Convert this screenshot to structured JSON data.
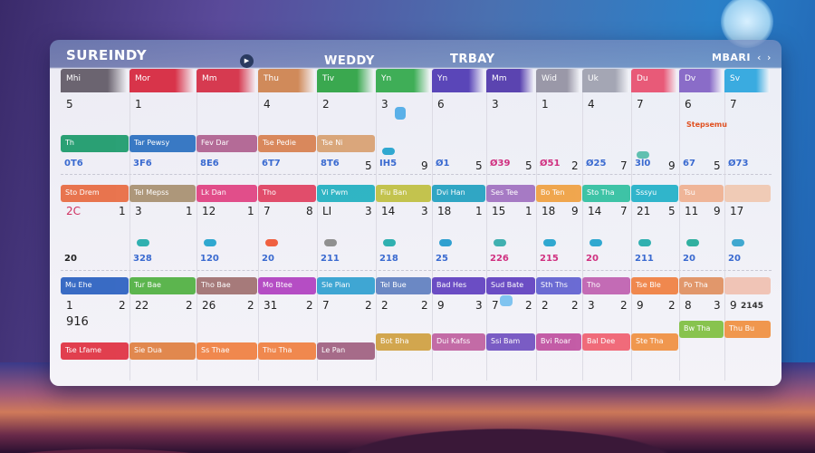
{
  "header": {
    "title": "SUREINDY",
    "sub1": "WEDDY",
    "sub2": "TRBAY",
    "month": "MBARI",
    "prev": "‹",
    "next": "›",
    "play_icon": "▶"
  },
  "colors": {
    "panel": "#f4f3f8",
    "accent": "#3a6ad0"
  },
  "columns": [
    {
      "label": "Mhi",
      "color": "#6b6470"
    },
    {
      "label": "Mor",
      "color": "#d8344a"
    },
    {
      "label": "Mm",
      "color": "#d63a50"
    },
    {
      "label": "Thu",
      "color": "#d08a5a"
    },
    {
      "label": "Tiv",
      "color": "#3aa84f"
    },
    {
      "label": "Yn",
      "color": "#3fae57"
    },
    {
      "label": "Yn",
      "color": "#5a46b8"
    },
    {
      "label": "Mm",
      "color": "#5b44b0"
    },
    {
      "label": "Wid",
      "color": "#9a98a8"
    },
    {
      "label": "Uk",
      "color": "#a4a6b4"
    },
    {
      "label": "Du",
      "color": "#e85a78"
    },
    {
      "label": "Dv",
      "color": "#8a6cc8"
    },
    {
      "label": "Sv",
      "color": "#3aabe0"
    }
  ],
  "row1": {
    "dates": [
      "5",
      "1",
      "",
      "4",
      "2",
      "3",
      "6",
      "3",
      "1",
      "4",
      "7",
      "6",
      "7"
    ],
    "sides": [
      "",
      "",
      "",
      "",
      "",
      "5",
      "9",
      "5",
      "5",
      "2",
      "7",
      "9",
      "5"
    ],
    "values": [
      "0T6",
      "3F6",
      "8E6",
      "6T7",
      "8T6",
      "IH5",
      "Ø1",
      "Ø39",
      "Ø51",
      "Ø25",
      "3l0",
      "67",
      "Ø73"
    ],
    "events": [
      {
        "label": "Th",
        "color": "#1a9a6a"
      },
      {
        "label": "Tar Pewsy",
        "color": "#2a70c0"
      },
      {
        "label": "Fev Dar",
        "color": "#b06090"
      },
      {
        "label": "Tse Pedie",
        "color": "#d88050"
      },
      {
        "label": "Tse Ni",
        "color": "#d8a070"
      }
    ],
    "tag": "Stepsemu"
  },
  "band2": [
    {
      "label": "Sto Drem",
      "color": "#e86a40"
    },
    {
      "label": "Tel Mepss",
      "color": "#a89070"
    },
    {
      "label": "Lk Dan",
      "color": "#e04080"
    },
    {
      "label": "Tho",
      "color": "#e04060"
    },
    {
      "label": "Vi Pwm",
      "color": "#20b0c0"
    },
    {
      "label": "Fiu Ban",
      "color": "#c0c040"
    },
    {
      "label": "Dvi Han",
      "color": "#20a0c0"
    },
    {
      "label": "Ses Tee",
      "color": "#a070c0"
    },
    {
      "label": "Bo Ten",
      "color": "#f0a040"
    },
    {
      "label": "Sto Tha",
      "color": "#30c0a0"
    },
    {
      "label": "Sssyu",
      "color": "#20b0c8"
    },
    {
      "label": "Tsu",
      "color": "#f0b090"
    },
    {
      "label": "",
      "color": "#f0c8b0"
    }
  ],
  "row2": {
    "dates": [
      "2C",
      "3",
      "12",
      "7",
      "LI",
      "14",
      "18",
      "15",
      "18",
      "14",
      "21",
      "11",
      "17"
    ],
    "sides": [
      "",
      "1",
      "1",
      "1",
      "8",
      "3",
      "3",
      "1",
      "1",
      "9",
      "7",
      "5",
      "9"
    ],
    "values": [
      "20",
      "328",
      "120",
      "20",
      "211",
      "218",
      "25",
      "226",
      "215",
      "20",
      "211",
      "20",
      "20"
    ],
    "pills": [
      "",
      "#30b0b0",
      "#30a8d0",
      "#f06040",
      "#909090",
      "#30b0b0",
      "#30a0d0",
      "#40b0b0",
      "#30a8d0",
      "#30a8d0",
      "#30b0b0",
      "#30b0a0",
      "#40a8d0"
    ]
  },
  "band3": [
    {
      "label": "Mu Ehe",
      "color": "#2a60c0"
    },
    {
      "label": "Tur Bae",
      "color": "#50b040"
    },
    {
      "label": "Tho Bae",
      "color": "#a07070"
    },
    {
      "label": "Mo Btee",
      "color": "#b040c0"
    },
    {
      "label": "Sle Pian",
      "color": "#30a0d0"
    },
    {
      "label": "Tel Bue",
      "color": "#6080c0"
    },
    {
      "label": "Bad Hes",
      "color": "#6040c0"
    },
    {
      "label": "Sud Bate",
      "color": "#6040c0"
    },
    {
      "label": "Sth Ths",
      "color": "#6060d0"
    },
    {
      "label": "Tho",
      "color": "#c060b0"
    },
    {
      "label": "Tse Ble",
      "color": "#f08040"
    },
    {
      "label": "Po Tha",
      "color": "#e09060"
    },
    {
      "label": "",
      "color": "#f0c0b0"
    }
  ],
  "row3": {
    "dates": [
      "1",
      "22",
      "26",
      "31",
      "7",
      "2",
      "9",
      "7",
      "2",
      "3",
      "9",
      "8",
      "9"
    ],
    "sides": [
      "",
      "2",
      "2",
      "2",
      "2",
      "2",
      "2",
      "3",
      "2",
      "2",
      "2",
      "2",
      "3"
    ],
    "extra_left": "916",
    "extra_right": "2145"
  },
  "band4": [
    {
      "label": "Tse Lfame",
      "color": "#e03040"
    },
    {
      "label": "Sie Dua",
      "color": "#e08040"
    },
    {
      "label": "Ss Thae",
      "color": "#f08040"
    },
    {
      "label": "Thu Tha",
      "color": "#f08040"
    },
    {
      "label": "Le Pan",
      "color": "#a06080"
    },
    {
      "label": "Bot Bha",
      "color": "#d0a040"
    },
    {
      "label": "Dui Kafss",
      "color": "#c060a0"
    },
    {
      "label": "Ssi Bam",
      "color": "#7050c0"
    },
    {
      "label": "Bvi Roar",
      "color": "#c050a0"
    },
    {
      "label": "Bal Dee",
      "color": "#f06070"
    },
    {
      "label": "Ste Tha",
      "color": "#f09040"
    },
    {
      "label": "Bw Tha",
      "color": "#80c040"
    },
    {
      "label": "Thu Bu",
      "color": "#f09040"
    }
  ]
}
